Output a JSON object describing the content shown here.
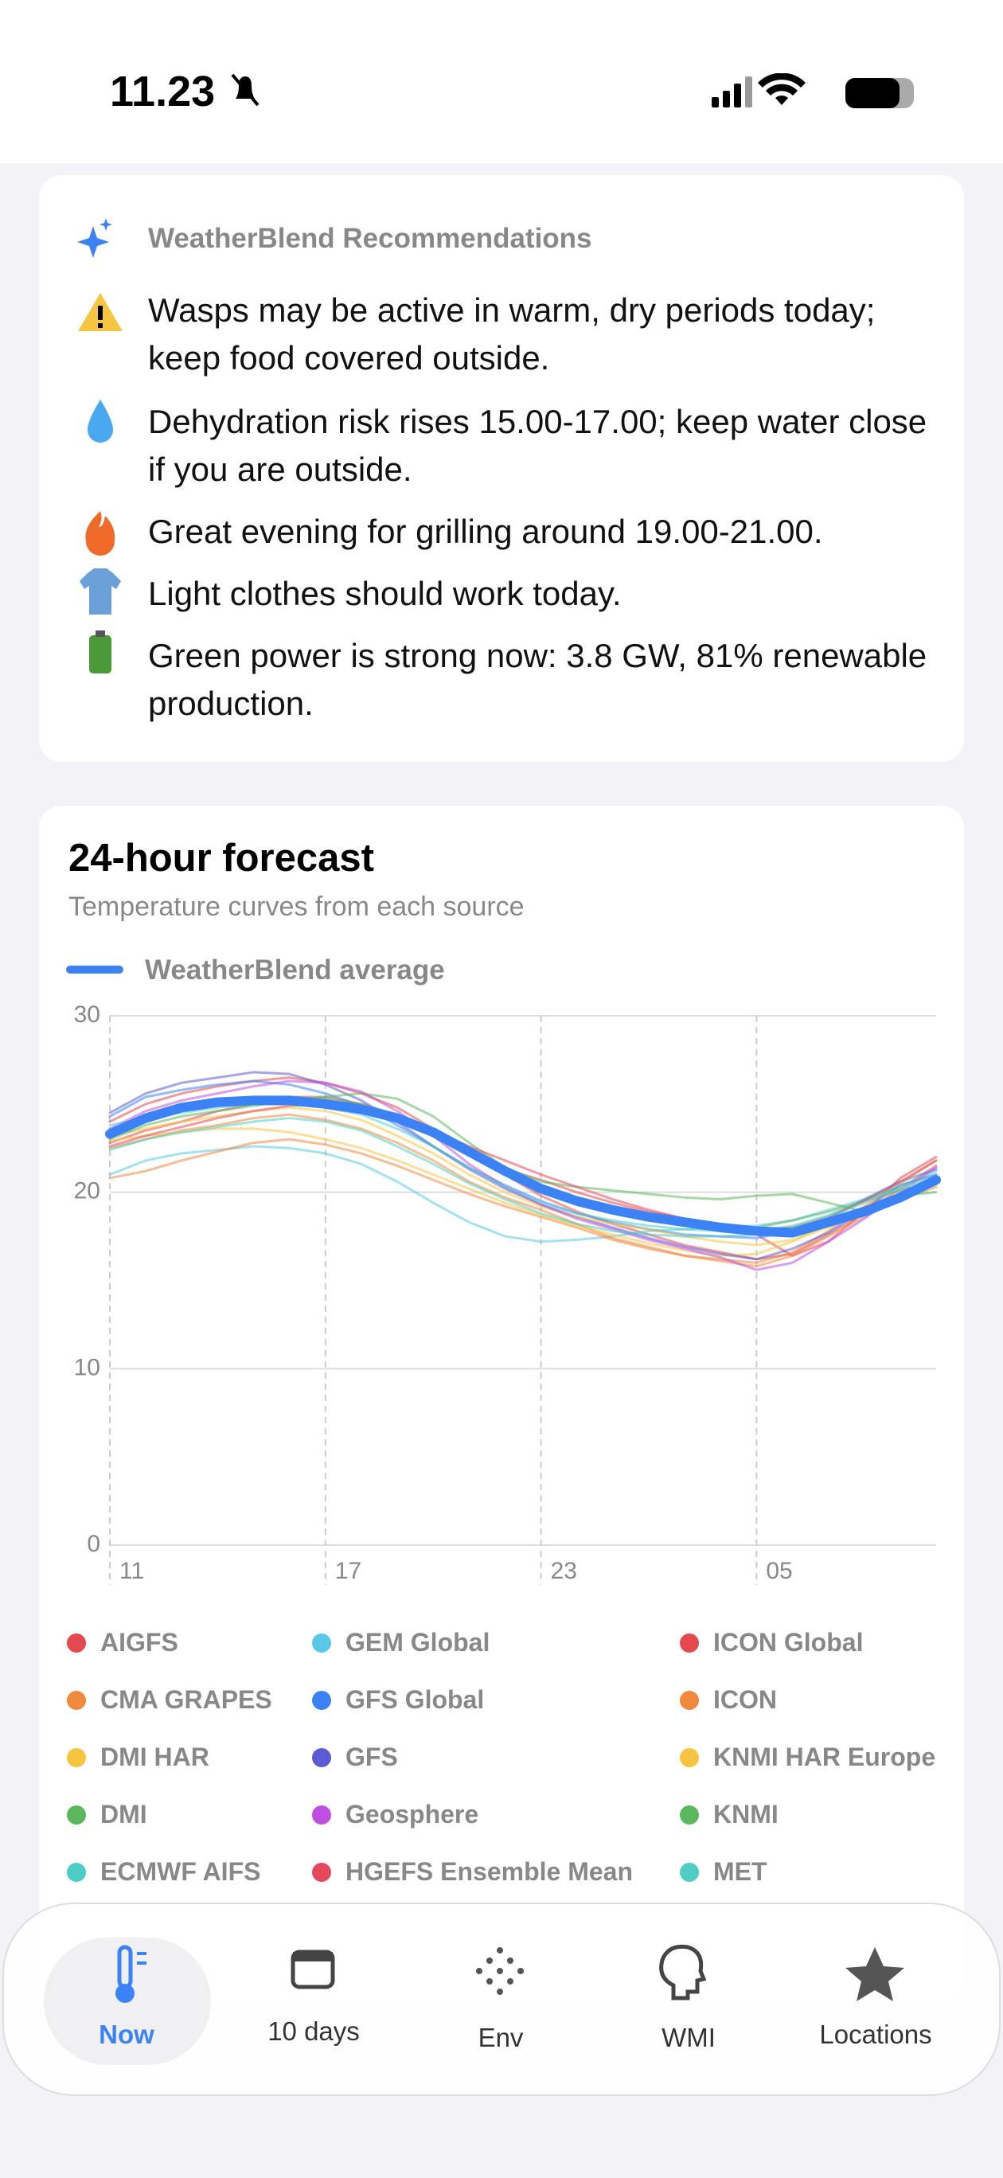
{
  "status_bar": {
    "time": "11.23"
  },
  "recommendations": {
    "title": "WeatherBlend Recommendations",
    "items": [
      "Wasps may be active in warm, dry periods today; keep food covered outside.",
      "Dehydration risk rises 15.00-17.00; keep water close if you are outside.",
      "Great evening for grilling around 19.00-21.00.",
      "Light clothes should work today.",
      "Green power is strong now: 3.8 GW, 81% renewable production."
    ]
  },
  "chart_data": {
    "type": "line",
    "title": "24-hour forecast",
    "subtitle": "Temperature curves from each source",
    "categories": [
      "11",
      null,
      null,
      null,
      null,
      null,
      "17",
      null,
      null,
      null,
      null,
      null,
      "23",
      null,
      null,
      null,
      null,
      null,
      "05",
      null,
      null,
      null,
      null,
      null
    ],
    "ylim": [
      0,
      30
    ],
    "yticks": [
      0,
      10,
      20,
      30
    ],
    "grid": true,
    "series": [
      {
        "name": "WeatherBlend average",
        "color": "#3b82f6",
        "values": [
          23.3,
          24.2,
          24.8,
          25.1,
          25.2,
          25.2,
          25.0,
          24.7,
          24.2,
          23.4,
          22.3,
          21.2,
          20.2,
          19.5,
          19.0,
          18.6,
          18.3,
          18.0,
          17.8,
          17.7,
          18.3,
          18.9,
          19.7,
          20.7
        ]
      },
      {
        "name": "AIGFS",
        "color": "#e5484d",
        "values": [
          24.0,
          25.0,
          25.6,
          26.0,
          26.3,
          26.5,
          26.2,
          25.6,
          24.8,
          23.6,
          22.3,
          21.0,
          19.8,
          18.9,
          18.2,
          17.6,
          17.0,
          16.6,
          16.2,
          16.5,
          17.6,
          18.8,
          20.2,
          21.5
        ]
      },
      {
        "name": "GEM Global",
        "color": "#5ac8e8",
        "values": [
          21.0,
          21.8,
          22.2,
          22.4,
          22.6,
          22.5,
          22.2,
          21.6,
          20.6,
          19.4,
          18.3,
          17.5,
          17.2,
          17.3,
          17.5,
          17.8,
          17.9,
          18.0,
          18.1,
          18.4,
          19.0,
          19.6,
          20.3,
          21.2
        ]
      },
      {
        "name": "ICON Global",
        "color": "#e5484d",
        "values": [
          22.8,
          23.5,
          24.0,
          24.6,
          25.0,
          25.4,
          25.4,
          25.0,
          24.3,
          23.3,
          22.2,
          21.3,
          20.7,
          20.0,
          19.4,
          18.9,
          18.5,
          18.2,
          17.6,
          16.4,
          17.2,
          18.9,
          20.8,
          22.0
        ]
      },
      {
        "name": "CMA GRAPES",
        "color": "#f0883e",
        "values": [
          20.8,
          21.2,
          21.8,
          22.3,
          22.8,
          23.0,
          22.7,
          22.2,
          21.5,
          20.7,
          19.9,
          19.2,
          18.6,
          18.0,
          17.3,
          16.8,
          16.4,
          16.1,
          15.8,
          16.4,
          17.5,
          18.6,
          19.6,
          20.3
        ]
      },
      {
        "name": "GFS Global",
        "color": "#3b82f6",
        "values": [
          24.3,
          25.4,
          25.8,
          26.1,
          26.3,
          26.1,
          25.6,
          24.9,
          23.8,
          22.6,
          21.4,
          20.4,
          19.5,
          18.8,
          18.3,
          17.9,
          17.6,
          17.5,
          17.4,
          17.8,
          18.5,
          19.6,
          20.6,
          21.3
        ]
      },
      {
        "name": "ICON",
        "color": "#f0883e",
        "values": [
          22.5,
          23.0,
          23.5,
          23.8,
          24.2,
          24.4,
          24.1,
          23.6,
          22.8,
          21.8,
          20.6,
          19.7,
          19.0,
          18.2,
          17.4,
          16.9,
          16.4,
          16.2,
          16.0,
          16.6,
          17.8,
          19.2,
          20.5,
          21.8
        ]
      },
      {
        "name": "DMI HAR",
        "color": "#f5c542",
        "values": [
          22.9,
          23.2,
          23.4,
          23.6,
          23.6,
          23.4,
          23.0,
          22.5,
          21.8,
          21.0,
          20.2,
          19.4,
          18.7,
          18.1,
          17.6,
          17.1,
          16.7,
          16.4,
          16.5,
          17.2,
          18.2,
          19.2,
          19.9,
          20.4
        ]
      },
      {
        "name": "GFS",
        "color": "#5b5bd6",
        "values": [
          24.5,
          25.6,
          26.2,
          26.5,
          26.8,
          26.7,
          26.1,
          25.2,
          24.0,
          22.6,
          21.3,
          20.2,
          19.3,
          18.6,
          18.0,
          17.4,
          16.9,
          16.5,
          16.2,
          16.8,
          17.7,
          19.0,
          20.4,
          21.0
        ]
      },
      {
        "name": "KNMI HAR Europe",
        "color": "#f5c542",
        "values": [
          23.2,
          23.6,
          24.0,
          24.3,
          24.6,
          24.8,
          24.6,
          24.1,
          23.2,
          22.2,
          21.0,
          20.0,
          19.2,
          18.6,
          18.2,
          17.9,
          17.5,
          17.2,
          17.0,
          17.3,
          18.0,
          18.9,
          19.8,
          20.5
        ]
      },
      {
        "name": "DMI",
        "color": "#5cb85c",
        "values": [
          23.0,
          23.8,
          24.3,
          24.6,
          24.9,
          25.2,
          25.4,
          25.6,
          25.3,
          24.3,
          22.8,
          21.4,
          20.6,
          20.3,
          20.1,
          19.9,
          19.7,
          19.6,
          19.8,
          19.9,
          19.4,
          18.9,
          19.8,
          20.0
        ]
      },
      {
        "name": "Geosphere",
        "color": "#c04ee0",
        "values": [
          23.6,
          24.6,
          25.2,
          25.6,
          26.0,
          26.3,
          26.2,
          25.7,
          24.6,
          23.2,
          21.6,
          20.3,
          19.3,
          18.5,
          17.9,
          17.3,
          16.8,
          16.3,
          15.6,
          16.0,
          17.2,
          18.5,
          20.0,
          21.4
        ]
      },
      {
        "name": "KNMI",
        "color": "#5cb85c",
        "values": [
          23.4,
          24.0,
          24.6,
          25.0,
          25.3,
          25.4,
          25.3,
          25.0,
          24.4,
          23.4,
          22.2,
          21.0,
          20.0,
          19.3,
          18.8,
          18.4,
          18.1,
          18.0,
          18.0,
          18.4,
          18.9,
          19.5,
          20.1,
          20.6
        ]
      },
      {
        "name": "ECMWF AIFS",
        "color": "#4ecdc4",
        "values": [
          23.8,
          24.2,
          24.5,
          24.8,
          25.0,
          25.0,
          24.8,
          24.4,
          23.6,
          22.6,
          21.4,
          20.3,
          19.4,
          18.8,
          18.4,
          18.1,
          17.9,
          17.8,
          17.8,
          18.1,
          18.7,
          19.5,
          20.4,
          21.0
        ]
      },
      {
        "name": "HGEFS Ensemble Mean",
        "color": "#e5485d",
        "values": [
          22.6,
          23.2,
          23.7,
          24.2,
          24.6,
          24.9,
          25.0,
          24.8,
          24.3,
          23.5,
          22.6,
          21.8,
          21.0,
          20.3,
          19.6,
          19.0,
          18.5,
          18.1,
          17.8,
          18.0,
          18.6,
          19.5,
          20.6,
          21.8
        ]
      },
      {
        "name": "MET",
        "color": "#4ecdc4",
        "values": [
          22.4,
          23.0,
          23.4,
          23.7,
          24.0,
          24.2,
          24.0,
          23.5,
          22.6,
          21.6,
          20.5,
          19.6,
          18.8,
          18.2,
          17.8,
          17.6,
          17.5,
          17.5,
          17.6,
          18.0,
          18.6,
          19.4,
          20.2,
          20.9
        ]
      }
    ]
  },
  "tab_bar": {
    "tabs": [
      "Now",
      "10 days",
      "Env",
      "WMI",
      "Locations"
    ],
    "selected": "Now"
  }
}
